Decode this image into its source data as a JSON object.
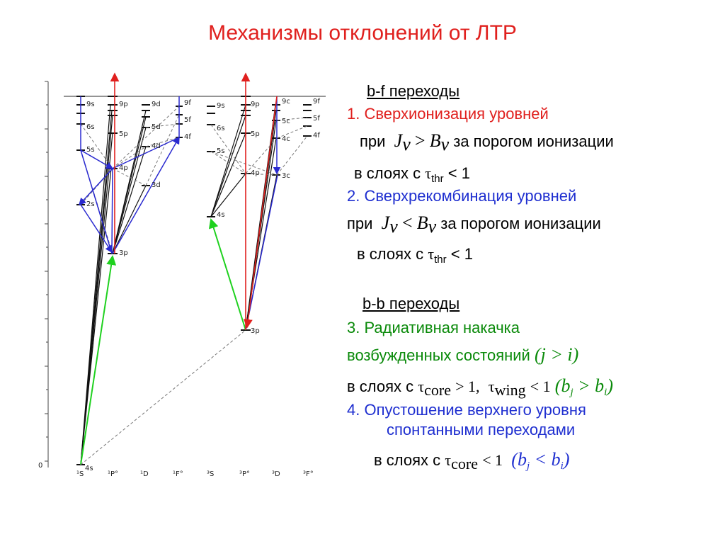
{
  "title": "Механизмы отклонений от ЛТР",
  "colors": {
    "title": "#e0201e",
    "item1": "#e0201e",
    "item2": "#1f2fd0",
    "item3": "#0a8a0a",
    "item4": "#1f2fd0",
    "green": "#1fd11f"
  },
  "bf": {
    "header": "b-f переходы",
    "item1": {
      "text": "1. Сверхионизация уровней",
      "cond_pre": "при",
      "cond_post": "за порогом ионизации",
      "layers": "в слоях с",
      "thr_tail": "< 1"
    },
    "item2": {
      "text": "2. Сверхрекомбинация уровней",
      "cond_pre": "при",
      "cond_post": "за порогом ионизации",
      "layers": "в слоях с",
      "thr_tail": "< 1"
    }
  },
  "bb": {
    "header": "b-b переходы",
    "item3": {
      "line1": "3.  Радиативная накачка",
      "line2": "возбужденных состояний",
      "layers": "в слоях с"
    },
    "item4": {
      "line1": "4.   Опустошение верхнего уровня",
      "line2": "спонтанными переходами",
      "layers": "в слоях с"
    }
  },
  "math": {
    "tau": "τ",
    "thr": "thr",
    "core": "core",
    "wing": "wing",
    "J": "J",
    "nu": "ν",
    "B": "B",
    "gt": ">",
    "lt": "<",
    "jgti": "(j > i)",
    "item3_cond": "> 1,",
    "item3_cond2": "< 1",
    "b": "b",
    "j": "j",
    "i": "i",
    "item4_cond": "< 1"
  },
  "diagram": {
    "axis_zero": "0",
    "terms_left": [
      "¹S",
      "¹P°",
      "¹D",
      "¹F°"
    ],
    "terms_right": [
      "³S",
      "³P°",
      "³D",
      "³F°"
    ],
    "levels_left": [
      "9s",
      "6s",
      "5s",
      "4s",
      "9p",
      "5p",
      "4p",
      "3p",
      "9d",
      "5d",
      "4d",
      "3d",
      "9f",
      "5f",
      "4f",
      "2s"
    ],
    "levels_right": [
      "9s",
      "6s",
      "5s",
      "4s",
      "9p",
      "5p",
      "4p",
      "3p",
      "9c",
      "5c",
      "4c",
      "3c",
      "9f",
      "5f",
      "4f"
    ]
  }
}
